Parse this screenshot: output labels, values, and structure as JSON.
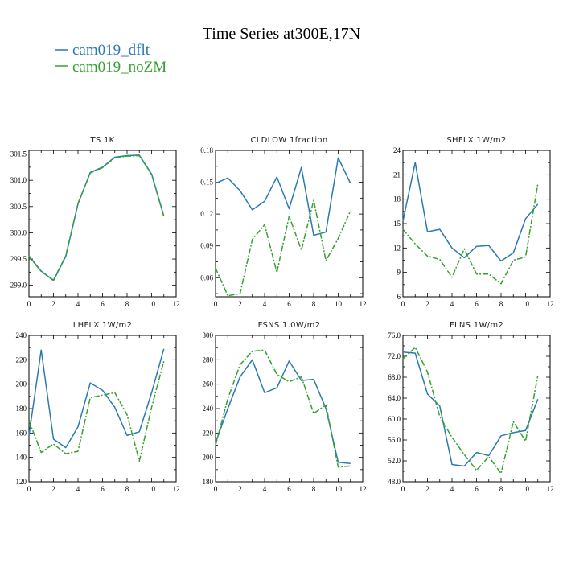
{
  "title": "Time Series at300E,17N",
  "colors": {
    "dflt": "#2a79b4",
    "noZM": "#36a030"
  },
  "legend": [
    {
      "label": "cam019_dflt",
      "color": "#2a79b4"
    },
    {
      "label": "cam019_noZM",
      "color": "#36a030"
    }
  ],
  "chart_data": [
    {
      "type": "line",
      "title": "TS   1K",
      "x": [
        0,
        1,
        2,
        3,
        4,
        5,
        6,
        7,
        8,
        9,
        10,
        11
      ],
      "xlim": [
        0,
        12
      ],
      "xticks": [
        "0",
        "2",
        "4",
        "6",
        "8",
        "10",
        "12"
      ],
      "ylim": [
        298.78,
        301.57
      ],
      "yticks": [
        299.0,
        299.5,
        300.0,
        300.5,
        301.0,
        301.5
      ],
      "ytick_labels": [
        "299.0",
        "299.5",
        "300.0",
        "300.5",
        "301.0",
        "301.5"
      ],
      "series": [
        {
          "name": "cam019_dflt",
          "values": [
            299.56,
            299.27,
            299.09,
            299.55,
            300.55,
            301.15,
            301.25,
            301.44,
            301.47,
            301.48,
            301.12,
            300.32
          ]
        },
        {
          "name": "cam019_noZM",
          "values": [
            299.55,
            299.26,
            299.1,
            299.56,
            300.56,
            301.14,
            301.24,
            301.43,
            301.46,
            301.47,
            301.11,
            300.31
          ]
        }
      ]
    },
    {
      "type": "line",
      "title": "CLDLOW   1fraction",
      "x": [
        0,
        1,
        2,
        3,
        4,
        5,
        6,
        7,
        8,
        9,
        10,
        11
      ],
      "xlim": [
        0,
        12
      ],
      "xticks": [
        "0",
        "2",
        "4",
        "6",
        "8",
        "10",
        "12"
      ],
      "ylim": [
        0.042,
        0.18
      ],
      "yticks": [
        0.06,
        0.09,
        0.12,
        0.15,
        0.18
      ],
      "ytick_labels": [
        "0.06",
        "0.09",
        "0.12",
        "0.15",
        "0.18"
      ],
      "series": [
        {
          "name": "cam019_dflt",
          "values": [
            0.149,
            0.154,
            0.142,
            0.124,
            0.132,
            0.155,
            0.125,
            0.164,
            0.1,
            0.103,
            0.173,
            0.149
          ]
        },
        {
          "name": "cam019_noZM",
          "values": [
            0.069,
            0.043,
            0.045,
            0.096,
            0.11,
            0.065,
            0.118,
            0.086,
            0.133,
            0.076,
            0.097,
            0.123
          ]
        }
      ]
    },
    {
      "type": "line",
      "title": "SHFLX   1W/m2",
      "x": [
        0,
        1,
        2,
        3,
        4,
        5,
        6,
        7,
        8,
        9,
        10,
        11
      ],
      "xlim": [
        0,
        12
      ],
      "xticks": [
        "0",
        "2",
        "4",
        "6",
        "8",
        "10",
        "12"
      ],
      "ylim": [
        6,
        24
      ],
      "yticks": [
        6,
        9,
        12,
        15,
        18,
        21,
        24
      ],
      "ytick_labels": [
        "6",
        "9",
        "12",
        "15",
        "18",
        "21",
        "24"
      ],
      "series": [
        {
          "name": "cam019_dflt",
          "values": [
            15.3,
            22.5,
            14.0,
            14.3,
            12.0,
            10.8,
            12.2,
            12.3,
            10.4,
            11.4,
            15.6,
            17.4
          ]
        },
        {
          "name": "cam019_noZM",
          "values": [
            14.3,
            12.5,
            11.0,
            10.6,
            8.4,
            11.9,
            8.8,
            8.8,
            7.6,
            10.5,
            10.9,
            19.9
          ]
        }
      ]
    },
    {
      "type": "line",
      "title": "LHFLX   1W/m2",
      "x": [
        0,
        1,
        2,
        3,
        4,
        5,
        6,
        7,
        8,
        9,
        10,
        11
      ],
      "xlim": [
        0,
        12
      ],
      "xticks": [
        "0",
        "2",
        "4",
        "6",
        "8",
        "10",
        "12"
      ],
      "ylim": [
        120,
        240
      ],
      "yticks": [
        120,
        140,
        160,
        180,
        200,
        220,
        240
      ],
      "ytick_labels": [
        "120",
        "140",
        "160",
        "180",
        "200",
        "220",
        "240"
      ],
      "series": [
        {
          "name": "cam019_dflt",
          "values": [
            158,
            228,
            155,
            148,
            165,
            201,
            195,
            181,
            158,
            161,
            193,
            229
          ]
        },
        {
          "name": "cam019_noZM",
          "values": [
            170,
            144,
            151,
            143,
            145,
            189,
            191,
            193,
            175,
            137,
            181,
            219
          ]
        }
      ]
    },
    {
      "type": "line",
      "title": "FSNS   1.0W/m2",
      "x": [
        0,
        1,
        2,
        3,
        4,
        5,
        6,
        7,
        8,
        9,
        10,
        11
      ],
      "xlim": [
        0,
        12
      ],
      "xticks": [
        "0",
        "2",
        "4",
        "6",
        "8",
        "10",
        "12"
      ],
      "ylim": [
        180,
        300
      ],
      "yticks": [
        180,
        200,
        220,
        240,
        260,
        280,
        300
      ],
      "ytick_labels": [
        "180",
        "200",
        "220",
        "240",
        "260",
        "280",
        "300"
      ],
      "series": [
        {
          "name": "cam019_dflt",
          "values": [
            212,
            240,
            266,
            280,
            253,
            257,
            279,
            263,
            264,
            240,
            196,
            195
          ]
        },
        {
          "name": "cam019_noZM",
          "values": [
            210,
            248,
            276,
            287,
            288,
            268,
            262,
            266,
            236,
            243,
            192,
            193
          ]
        }
      ]
    },
    {
      "type": "line",
      "title": "FLNS   1W/m2",
      "x": [
        0,
        1,
        2,
        3,
        4,
        5,
        6,
        7,
        8,
        9,
        10,
        11
      ],
      "xlim": [
        0,
        12
      ],
      "xticks": [
        "0",
        "2",
        "4",
        "6",
        "8",
        "10",
        "12"
      ],
      "ylim": [
        48,
        76
      ],
      "yticks": [
        48,
        52,
        56,
        60,
        64,
        68,
        72,
        76
      ],
      "ytick_labels": [
        "48.0",
        "52.0",
        "56.0",
        "60.0",
        "64.0",
        "68.0",
        "72.0",
        "76.0"
      ],
      "series": [
        {
          "name": "cam019_dflt",
          "values": [
            72.8,
            72.6,
            64.8,
            62.5,
            51.3,
            51.0,
            53.6,
            53.0,
            56.8,
            57.4,
            57.8,
            63.8
          ]
        },
        {
          "name": "cam019_noZM",
          "values": [
            71.5,
            73.7,
            69.0,
            60.5,
            56.5,
            53.2,
            50.2,
            52.8,
            49.6,
            59.5,
            55.8,
            68.3
          ]
        }
      ]
    }
  ]
}
